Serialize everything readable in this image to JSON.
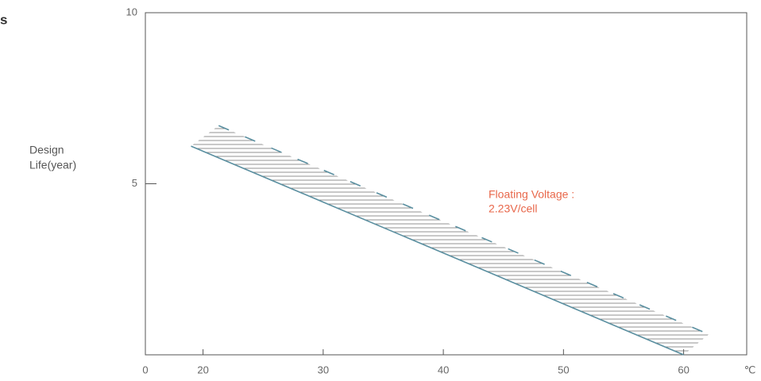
{
  "header_fragment": "s",
  "chart_data": {
    "type": "area",
    "y_label_lines": [
      "Design",
      "Life(year)"
    ],
    "x_label": "℃",
    "x_origin_label": "0",
    "annotation_lines": [
      "Floating Voltage :",
      "2.23V/cell"
    ],
    "annotation_color": "#e8674a",
    "xlim": [
      15.2,
      65.25
    ],
    "xticks": [
      20,
      30,
      40,
      50,
      60
    ],
    "ylim": [
      0,
      10
    ],
    "yticks": [
      5,
      10
    ],
    "hatch": true,
    "series": [
      {
        "color": "#5a8fa0",
        "dashed": false,
        "x": [
          19,
          60
        ],
        "values": [
          6.1,
          0
        ]
      },
      {
        "color": "#5a8fa0",
        "dashed": true,
        "x": [
          21.3,
          62.1
        ],
        "values": [
          6.7,
          0.6
        ]
      }
    ]
  }
}
